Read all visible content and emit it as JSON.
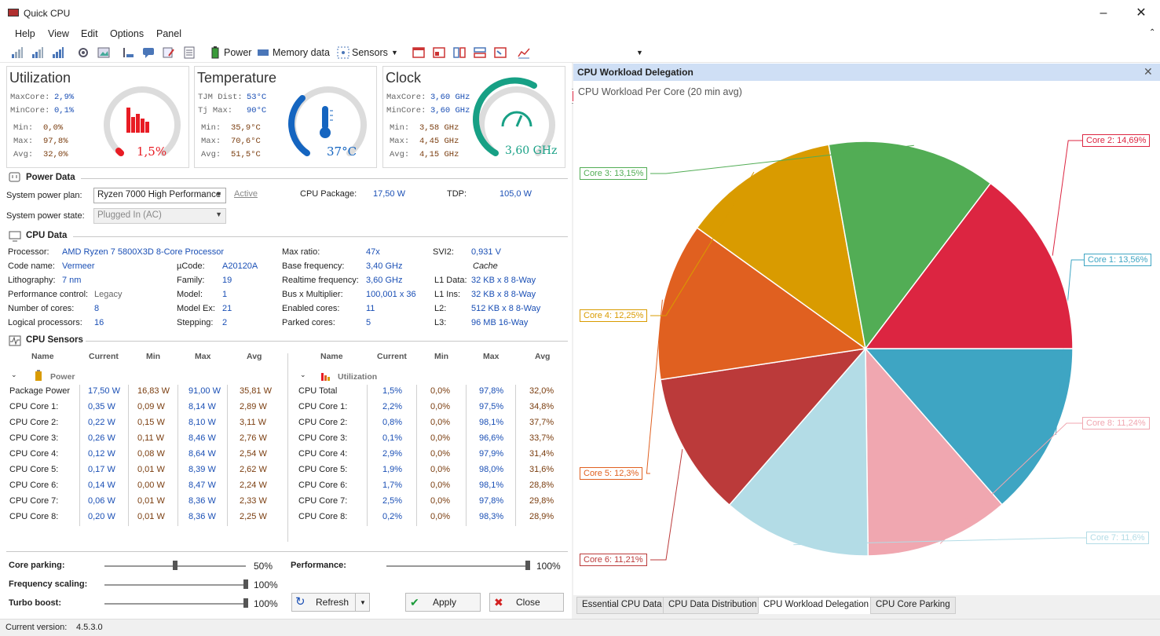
{
  "app": {
    "title": "Quick CPU"
  },
  "menu": [
    "Help",
    "View",
    "Edit",
    "Options",
    "Panel"
  ],
  "toolbar": {
    "power": "Power",
    "memory": "Memory data",
    "sensors": "Sensors"
  },
  "cards": {
    "utilization": {
      "title": "Utilization",
      "maxcore_l": "MaxCore:",
      "maxcore": "2,9%",
      "mincore_l": "MinCore:",
      "mincore": "0,1%",
      "min_l": "Min:",
      "min": "0,0%",
      "max_l": "Max:",
      "max": "97,8%",
      "avg_l": "Avg:",
      "avg": "32,0%",
      "value": "1,5%",
      "color": "#e81c24"
    },
    "temperature": {
      "title": "Temperature",
      "tjm_l": "TJM Dist:",
      "tjm": "53°C",
      "tj_l": "Tj Max:",
      "tj": "90°C",
      "min_l": "Min:",
      "min": "35,9°C",
      "max_l": "Max:",
      "max": "70,6°C",
      "avg_l": "Avg:",
      "avg": "51,5°C",
      "value": "37°C",
      "color": "#1565c0"
    },
    "clock": {
      "title": "Clock",
      "maxcore_l": "MaxCore:",
      "maxcore": "3,60 GHz",
      "mincore_l": "MinCore:",
      "mincore": "3,60 GHz",
      "min_l": "Min:",
      "min": "3,58 GHz",
      "max_l": "Max:",
      "max": "4,45 GHz",
      "avg_l": "Avg:",
      "avg": "4,15 GHz",
      "value": "3,60 GHz",
      "color": "#17a085"
    }
  },
  "power": {
    "section": "Power Data",
    "plan_label": "System power plan:",
    "plan": "Ryzen 7000 High Performance",
    "active": "Active",
    "state_label": "System power state:",
    "state": "Plugged In (AC)",
    "pkg_label": "CPU Package:",
    "pkg": "17,50 W",
    "tdp_label": "TDP:",
    "tdp": "105,0 W"
  },
  "cpu": {
    "section": "CPU Data",
    "processor_l": "Processor:",
    "processor": "AMD Ryzen 7 5800X3D 8-Core Processor",
    "codename_l": "Code name:",
    "codename": "Vermeer",
    "litho_l": "Lithography:",
    "litho": "7 nm",
    "perf_l": "Performance control:",
    "perf": "Legacy",
    "cores_l": "Number of cores:",
    "cores": "8",
    "logical_l": "Logical processors:",
    "logical": "16",
    "ucode_l": "µCode:",
    "ucode": "A20120A",
    "family_l": "Family:",
    "family": "19",
    "model_l": "Model:",
    "model": "1",
    "modelex_l": "Model Ex:",
    "modelex": "21",
    "stepping_l": "Stepping:",
    "stepping": "2",
    "maxratio_l": "Max ratio:",
    "maxratio": "47x",
    "basefreq_l": "Base frequency:",
    "basefreq": "3,40 GHz",
    "realfreq_l": "Realtime frequency:",
    "realfreq": "3,60 GHz",
    "busmul_l": "Bus x Multiplier:",
    "busmul": "100,001 x 36",
    "enabled_l": "Enabled cores:",
    "enabled": "11",
    "parked_l": "Parked cores:",
    "parked": "5",
    "svi2_l": "SVI2:",
    "svi2": "0,931 V",
    "cache_l": "Cache",
    "l1d_l": "L1 Data:",
    "l1d": "32 KB x 8  8-Way",
    "l1i_l": "L1 Ins:",
    "l1i": "32 KB x 8  8-Way",
    "l2_l": "L2:",
    "l2": "512 KB x 8  8-Way",
    "l3_l": "L3:",
    "l3": "96 MB  16-Way"
  },
  "sensors": {
    "section": "CPU Sensors",
    "cols": [
      "Name",
      "Current",
      "Min",
      "Max",
      "Avg"
    ],
    "power_group": "Power",
    "power_rows": [
      [
        "Package Power",
        "17,50 W",
        "16,83 W",
        "91,00 W",
        "35,81 W"
      ],
      [
        "CPU Core 1:",
        "0,35 W",
        "0,09 W",
        "8,14 W",
        "2,89 W"
      ],
      [
        "CPU Core 2:",
        "0,22 W",
        "0,15 W",
        "8,10 W",
        "3,11 W"
      ],
      [
        "CPU Core 3:",
        "0,26 W",
        "0,11 W",
        "8,46 W",
        "2,76 W"
      ],
      [
        "CPU Core 4:",
        "0,12 W",
        "0,08 W",
        "8,64 W",
        "2,54 W"
      ],
      [
        "CPU Core 5:",
        "0,17 W",
        "0,01 W",
        "8,39 W",
        "2,62 W"
      ],
      [
        "CPU Core 6:",
        "0,14 W",
        "0,00 W",
        "8,47 W",
        "2,24 W"
      ],
      [
        "CPU Core 7:",
        "0,06 W",
        "0,01 W",
        "8,36 W",
        "2,33 W"
      ],
      [
        "CPU Core 8:",
        "0,20 W",
        "0,01 W",
        "8,36 W",
        "2,25 W"
      ]
    ],
    "util_group": "Utilization",
    "util_rows": [
      [
        "CPU Total",
        "1,5%",
        "0,0%",
        "97,8%",
        "32,0%"
      ],
      [
        "CPU Core 1:",
        "2,2%",
        "0,0%",
        "97,5%",
        "34,8%"
      ],
      [
        "CPU Core 2:",
        "0,8%",
        "0,0%",
        "98,1%",
        "37,7%"
      ],
      [
        "CPU Core 3:",
        "0,1%",
        "0,0%",
        "96,6%",
        "33,7%"
      ],
      [
        "CPU Core 4:",
        "2,9%",
        "0,0%",
        "97,9%",
        "31,4%"
      ],
      [
        "CPU Core 5:",
        "1,9%",
        "0,0%",
        "98,0%",
        "31,6%"
      ],
      [
        "CPU Core 6:",
        "1,7%",
        "0,0%",
        "98,1%",
        "28,8%"
      ],
      [
        "CPU Core 7:",
        "2,5%",
        "0,0%",
        "97,8%",
        "29,8%"
      ],
      [
        "CPU Core 8:",
        "0,2%",
        "0,0%",
        "98,3%",
        "28,9%"
      ]
    ]
  },
  "controls": {
    "parking_l": "Core parking:",
    "parking": "50%",
    "parking_v": 0.5,
    "freq_l": "Frequency scaling:",
    "freq": "100%",
    "freq_v": 1.0,
    "turbo_l": "Turbo boost:",
    "turbo": "100%",
    "turbo_v": 1.0,
    "perf_l": "Performance:",
    "perf": "100%",
    "perf_v": 1.0,
    "refresh": "Refresh",
    "apply": "Apply",
    "close": "Close"
  },
  "status": {
    "label": "Current version:",
    "version": "4.5.3.0"
  },
  "right_panel": {
    "header": "CPU Workload Delegation",
    "tabs": [
      "Essential CPU Data",
      "CPU Data Distribution",
      "CPU Workload Delegation",
      "CPU Core Parking"
    ]
  },
  "chart_data": {
    "type": "pie",
    "title": "CPU Workload Per Core (20 min avg)",
    "slices": [
      {
        "label": "Core 1:  13,56%",
        "value": 13.56,
        "color": "#3ea5c3"
      },
      {
        "label": "Core 8:  11,24%",
        "value": 11.24,
        "color": "#f0a7b0"
      },
      {
        "label": "Core 7:  11,6%",
        "value": 11.6,
        "color": "#b3dce6"
      },
      {
        "label": "Core 6:  11,21%",
        "value": 11.21,
        "color": "#bb3a3a"
      },
      {
        "label": "Core 5:  12,3%",
        "value": 12.3,
        "color": "#e06020"
      },
      {
        "label": "Core 4:  12,25%",
        "value": 12.25,
        "color": "#d99b00"
      },
      {
        "label": "Core 3:  13,15%",
        "value": 13.15,
        "color": "#52ad55"
      },
      {
        "label": "Core 2:  14,69%",
        "value": 14.69,
        "color": "#dc2541"
      }
    ]
  }
}
